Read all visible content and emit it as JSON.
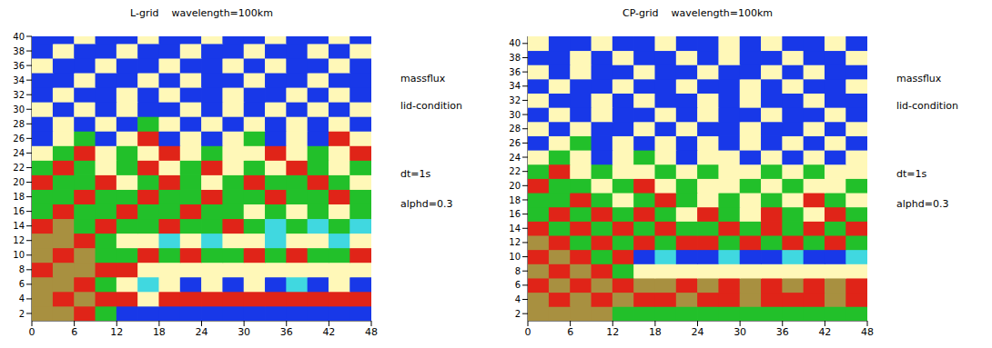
{
  "chart_data": [
    {
      "type": "heatmap",
      "title": "L-grid    wavelength=100km",
      "annotations": [
        "massflux",
        "lid-condition",
        "dt=1s",
        "alphd=0.3"
      ],
      "x": [
        1.5,
        4.5,
        7.5,
        10.5,
        13.5,
        16.5,
        19.5,
        22.5,
        25.5,
        28.5,
        31.5,
        34.5,
        37.5,
        40.5,
        43.5,
        46.5
      ],
      "y": [
        2,
        4,
        6,
        8,
        10,
        12,
        14,
        16,
        18,
        20,
        22,
        24,
        26,
        28,
        30,
        32,
        34,
        36,
        38,
        40
      ],
      "xlim": [
        0,
        48
      ],
      "xticks": [
        0,
        6,
        12,
        18,
        24,
        30,
        36,
        42,
        48
      ],
      "ylim": [
        1,
        40
      ],
      "yticks": [
        2,
        4,
        6,
        8,
        10,
        12,
        14,
        16,
        18,
        20,
        22,
        24,
        26,
        28,
        30,
        32,
        34,
        36,
        38,
        40
      ],
      "colors": [
        "#1838e8",
        "#40d8e0",
        "#fff8b8",
        "#22c02a",
        "#e02418",
        "#a89040"
      ],
      "cells": [
        [
          5,
          5,
          4,
          3,
          0,
          0,
          0,
          0,
          0,
          0,
          0,
          0,
          0,
          0,
          0,
          0
        ],
        [
          5,
          4,
          5,
          4,
          4,
          2,
          4,
          4,
          4,
          4,
          4,
          4,
          4,
          4,
          4,
          4
        ],
        [
          5,
          5,
          4,
          3,
          2,
          1,
          2,
          0,
          2,
          0,
          2,
          0,
          1,
          0,
          2,
          0
        ],
        [
          4,
          5,
          5,
          4,
          4,
          2,
          2,
          2,
          2,
          2,
          2,
          2,
          2,
          2,
          2,
          2
        ],
        [
          5,
          4,
          5,
          3,
          3,
          4,
          3,
          4,
          3,
          3,
          4,
          3,
          4,
          3,
          3,
          4
        ],
        [
          5,
          5,
          4,
          3,
          2,
          2,
          1,
          2,
          1,
          2,
          2,
          1,
          2,
          2,
          1,
          2
        ],
        [
          4,
          5,
          3,
          4,
          3,
          3,
          4,
          3,
          3,
          4,
          3,
          1,
          3,
          1,
          3,
          1
        ],
        [
          3,
          4,
          3,
          3,
          4,
          3,
          3,
          4,
          3,
          3,
          2,
          3,
          2,
          3,
          2,
          3
        ],
        [
          3,
          3,
          4,
          3,
          3,
          4,
          3,
          3,
          4,
          3,
          3,
          4,
          3,
          3,
          4,
          3
        ],
        [
          4,
          3,
          3,
          4,
          2,
          3,
          4,
          3,
          2,
          3,
          4,
          3,
          3,
          4,
          3,
          2
        ],
        [
          3,
          4,
          3,
          2,
          3,
          4,
          2,
          3,
          4,
          2,
          3,
          2,
          4,
          3,
          2,
          3
        ],
        [
          2,
          3,
          4,
          2,
          3,
          2,
          4,
          2,
          3,
          2,
          2,
          4,
          2,
          3,
          2,
          4
        ],
        [
          0,
          2,
          3,
          0,
          2,
          4,
          0,
          2,
          0,
          2,
          3,
          0,
          2,
          0,
          4,
          2
        ],
        [
          0,
          2,
          0,
          2,
          0,
          3,
          2,
          0,
          2,
          0,
          2,
          0,
          2,
          0,
          2,
          0
        ],
        [
          2,
          0,
          2,
          0,
          2,
          0,
          0,
          2,
          0,
          2,
          0,
          2,
          0,
          2,
          0,
          2
        ],
        [
          0,
          2,
          0,
          0,
          2,
          0,
          2,
          0,
          0,
          2,
          0,
          0,
          2,
          0,
          2,
          0
        ],
        [
          0,
          0,
          2,
          0,
          0,
          2,
          0,
          2,
          0,
          0,
          2,
          0,
          0,
          2,
          0,
          0
        ],
        [
          2,
          0,
          0,
          2,
          0,
          0,
          2,
          0,
          0,
          2,
          0,
          2,
          0,
          0,
          2,
          0
        ],
        [
          0,
          2,
          0,
          0,
          2,
          0,
          0,
          2,
          0,
          0,
          2,
          0,
          0,
          2,
          0,
          2
        ],
        [
          0,
          0,
          2,
          0,
          0,
          2,
          0,
          0,
          2,
          0,
          0,
          2,
          0,
          0,
          2,
          0
        ]
      ]
    },
    {
      "type": "heatmap",
      "title": "CP-grid    wavelength=100km",
      "annotations": [
        "massflux",
        "lid-condition",
        "dt=1s",
        "alphd=0.3"
      ],
      "x": [
        1.5,
        4.5,
        7.5,
        10.5,
        13.5,
        16.5,
        19.5,
        22.5,
        25.5,
        28.5,
        31.5,
        34.5,
        37.5,
        40.5,
        43.5,
        46.5
      ],
      "y": [
        2,
        4,
        6,
        8,
        10,
        12,
        14,
        16,
        18,
        20,
        22,
        24,
        26,
        28,
        30,
        32,
        34,
        36,
        38,
        40
      ],
      "xlim": [
        0,
        48
      ],
      "xticks": [
        0,
        6,
        12,
        18,
        24,
        30,
        36,
        42,
        48
      ],
      "ylim": [
        1,
        41
      ],
      "yticks": [
        2,
        4,
        6,
        8,
        10,
        12,
        14,
        16,
        18,
        20,
        22,
        24,
        26,
        28,
        30,
        32,
        34,
        36,
        38,
        40
      ],
      "colors": [
        "#1838e8",
        "#40d8e0",
        "#fff8b8",
        "#22c02a",
        "#e02418",
        "#a89040"
      ],
      "cells": [
        [
          5,
          5,
          5,
          5,
          3,
          3,
          3,
          3,
          3,
          3,
          3,
          3,
          3,
          3,
          3,
          3
        ],
        [
          5,
          4,
          5,
          4,
          5,
          4,
          4,
          5,
          4,
          4,
          5,
          4,
          4,
          4,
          5,
          4
        ],
        [
          4,
          5,
          4,
          5,
          4,
          5,
          5,
          4,
          5,
          4,
          5,
          4,
          5,
          4,
          5,
          4
        ],
        [
          5,
          4,
          5,
          4,
          3,
          2,
          2,
          2,
          2,
          2,
          2,
          2,
          2,
          2,
          2,
          2
        ],
        [
          4,
          5,
          4,
          3,
          4,
          0,
          1,
          0,
          0,
          1,
          0,
          0,
          1,
          0,
          0,
          1
        ],
        [
          5,
          4,
          3,
          4,
          3,
          4,
          3,
          4,
          4,
          3,
          4,
          3,
          4,
          3,
          4,
          3
        ],
        [
          4,
          3,
          4,
          3,
          4,
          3,
          4,
          3,
          3,
          4,
          3,
          4,
          3,
          4,
          3,
          4
        ],
        [
          3,
          4,
          3,
          4,
          3,
          4,
          3,
          2,
          4,
          3,
          2,
          4,
          3,
          2,
          4,
          3
        ],
        [
          3,
          3,
          4,
          3,
          2,
          3,
          4,
          3,
          2,
          3,
          2,
          3,
          2,
          4,
          3,
          2
        ],
        [
          4,
          3,
          3,
          2,
          3,
          4,
          2,
          3,
          2,
          2,
          3,
          2,
          3,
          2,
          2,
          3
        ],
        [
          3,
          4,
          2,
          3,
          2,
          2,
          3,
          2,
          3,
          2,
          2,
          3,
          2,
          3,
          2,
          2
        ],
        [
          2,
          3,
          2,
          0,
          2,
          3,
          2,
          0,
          2,
          2,
          0,
          2,
          0,
          2,
          0,
          2
        ],
        [
          0,
          2,
          3,
          0,
          2,
          0,
          2,
          0,
          2,
          0,
          2,
          0,
          2,
          0,
          2,
          0
        ],
        [
          2,
          0,
          2,
          0,
          0,
          2,
          0,
          2,
          0,
          0,
          2,
          0,
          0,
          2,
          0,
          2
        ],
        [
          0,
          2,
          0,
          2,
          0,
          0,
          2,
          0,
          2,
          0,
          0,
          2,
          0,
          0,
          2,
          0
        ],
        [
          2,
          0,
          0,
          2,
          0,
          2,
          0,
          0,
          2,
          0,
          2,
          0,
          0,
          2,
          0,
          0
        ],
        [
          0,
          2,
          0,
          0,
          2,
          0,
          0,
          2,
          0,
          0,
          2,
          0,
          2,
          0,
          0,
          2
        ],
        [
          2,
          0,
          2,
          0,
          0,
          2,
          0,
          0,
          2,
          0,
          0,
          2,
          0,
          2,
          0,
          0
        ],
        [
          0,
          0,
          2,
          0,
          2,
          0,
          0,
          2,
          0,
          2,
          0,
          0,
          2,
          0,
          0,
          2
        ],
        [
          2,
          0,
          0,
          2,
          0,
          0,
          2,
          0,
          0,
          2,
          0,
          2,
          0,
          0,
          2,
          0
        ]
      ]
    }
  ]
}
